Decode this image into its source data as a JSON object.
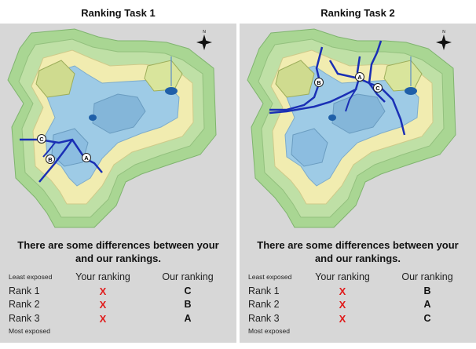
{
  "panels": [
    {
      "title": "Ranking Task 1",
      "message_line1": "There are some differences between your",
      "message_line2": "and our rankings.",
      "least_label": "Least exposed",
      "most_label": "Most exposed",
      "your_header": "Your ranking",
      "our_header": "Our ranking",
      "rows": [
        {
          "rank": "Rank 1",
          "yours": "X",
          "ours": "C"
        },
        {
          "rank": "Rank 2",
          "yours": "X",
          "ours": "B"
        },
        {
          "rank": "Rank 3",
          "yours": "X",
          "ours": "A"
        }
      ],
      "markers": [
        "C",
        "B",
        "A"
      ],
      "compass": "N"
    },
    {
      "title": "Ranking Task 2",
      "message_line1": "There are some differences between your",
      "message_line2": "and our rankings.",
      "least_label": "Least exposed",
      "most_label": "Most exposed",
      "your_header": "Your ranking",
      "our_header": "Our ranking",
      "rows": [
        {
          "rank": "Rank 1",
          "yours": "X",
          "ours": "B"
        },
        {
          "rank": "Rank 2",
          "yours": "X",
          "ours": "A"
        },
        {
          "rank": "Rank 3",
          "yours": "X",
          "ours": "C"
        }
      ],
      "markers": [
        "B",
        "A",
        "C"
      ],
      "compass": "N"
    }
  ],
  "colors": {
    "panel_bg": "#d7d7d7",
    "mark_wrong": "#e01a1a",
    "route": "#1a2fb5",
    "terrain_low": "#9ecbe6",
    "terrain_mid": "#f1ecb0",
    "terrain_high": "#a9d693"
  }
}
